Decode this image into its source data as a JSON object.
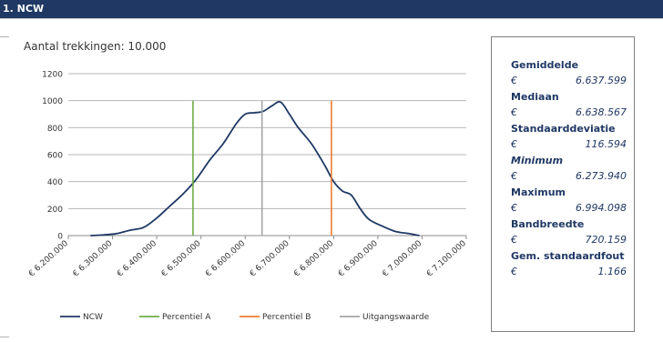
{
  "header": {
    "title": "1. NCW"
  },
  "chart_data": {
    "type": "line",
    "title": "",
    "subtitle": "Aantal trekkingen: 10.000",
    "xlabel": "",
    "ylabel": "",
    "xlim": [
      6200000,
      7100000
    ],
    "ylim": [
      0,
      1200
    ],
    "y_ticks": [
      0,
      200,
      400,
      600,
      800,
      1000,
      1200
    ],
    "y_tick_labels": [
      "0",
      "200",
      "400",
      "600",
      "800",
      "1000",
      "1200"
    ],
    "x_ticks": [
      6200000,
      6300000,
      6400000,
      6500000,
      6600000,
      6700000,
      6800000,
      6900000,
      7000000,
      7100000
    ],
    "x_tick_labels": [
      "€ 6.200.000",
      "€ 6.300.000",
      "€ 6.400.000",
      "€ 6.500.000",
      "€ 6.600.000",
      "€ 6.700.000",
      "€ 6.800.000",
      "€ 6.900.000",
      "€ 7.000.000",
      "€ 7.100.000"
    ],
    "grid": true,
    "legend_position": "bottom",
    "series": [
      {
        "name": "NCW",
        "color": "#1f3864",
        "x": [
          6250000,
          6280000,
          6310000,
          6340000,
          6370000,
          6400000,
          6430000,
          6460000,
          6490000,
          6520000,
          6550000,
          6580000,
          6600000,
          6620000,
          6640000,
          6660000,
          6680000,
          6700000,
          6720000,
          6750000,
          6780000,
          6800000,
          6820000,
          6840000,
          6860000,
          6880000,
          6910000,
          6940000,
          6970000,
          6994000
        ],
        "y": [
          0,
          5,
          15,
          40,
          60,
          130,
          220,
          310,
          420,
          560,
          680,
          830,
          900,
          910,
          920,
          960,
          990,
          900,
          800,
          680,
          520,
          400,
          330,
          300,
          200,
          120,
          70,
          30,
          15,
          0
        ]
      },
      {
        "name": "Percentiel A",
        "color": "#70ad47",
        "x": [
          6482000,
          6482000
        ],
        "y": [
          0,
          1000
        ]
      },
      {
        "name": "Percentiel B",
        "color": "#ed7d31",
        "x": [
          6795000,
          6795000
        ],
        "y": [
          0,
          1000
        ]
      },
      {
        "name": "Uitgangswaarde",
        "color": "#a5a5a5",
        "x": [
          6638000,
          6638000
        ],
        "y": [
          0,
          1000
        ]
      }
    ]
  },
  "stats": [
    {
      "label": "Gemiddelde",
      "currency": "€",
      "value": "6.637.599",
      "italic_label": false
    },
    {
      "label": "Mediaan",
      "currency": "€",
      "value": "6.638.567",
      "italic_label": false
    },
    {
      "label": "Standaarddeviatie",
      "currency": "€",
      "value": "116.594",
      "italic_label": false
    },
    {
      "label": "Minimum",
      "currency": "€",
      "value": "6.273.940",
      "italic_label": true
    },
    {
      "label": "Maximum",
      "currency": "€",
      "value": "6.994.098",
      "italic_label": false
    },
    {
      "label": "Bandbreedte",
      "currency": "€",
      "value": "720.159",
      "italic_label": false
    },
    {
      "label": "Gem. standaardfout",
      "currency": "€",
      "value": "1.166",
      "italic_label": false
    }
  ]
}
